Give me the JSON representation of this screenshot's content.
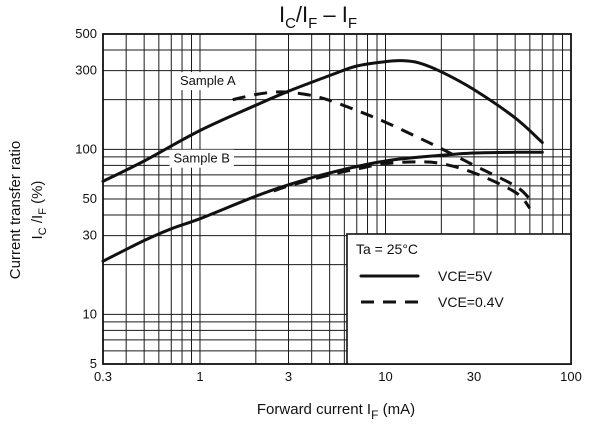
{
  "chart_data": {
    "type": "line",
    "title": "IC/IF – IF",
    "title_parts": {
      "main1": "I",
      "sub1": "C",
      "main2": "/I",
      "sub2": "F",
      "main3": " – I",
      "sub3": "F"
    },
    "xlabel": "Forward current   IF   (mA)",
    "xlabel_parts": {
      "text": "Forward current   I",
      "sub": "F",
      "unit": "   (mA)"
    },
    "ylabel": "Current transfer ratio   IC /IF   (%)",
    "ylabel_parts": {
      "line1": "Current transfer ratio",
      "main": "I",
      "sub1": "C",
      "mid": " /I",
      "sub2": "F",
      "unit": "      (%)"
    },
    "x_scale": "log",
    "y_scale": "log",
    "xlim": [
      0.3,
      100
    ],
    "ylim": [
      5,
      500
    ],
    "x_ticks": [
      0.3,
      1,
      3,
      10,
      30,
      100
    ],
    "x_tick_labels": [
      "0.3",
      "1",
      "3",
      "10",
      "30",
      "100"
    ],
    "y_ticks": [
      5,
      10,
      30,
      50,
      100,
      300,
      500
    ],
    "y_tick_labels": [
      "5",
      "10",
      "30",
      "50",
      "100",
      "300",
      "500"
    ],
    "grid": true,
    "annotations": [
      {
        "text": "Sample   A",
        "x": 0.78,
        "y": 245
      },
      {
        "text": "Sample   B",
        "x": 0.72,
        "y": 83
      }
    ],
    "legend": {
      "position": "bottom-right",
      "header": "Ta = 25°C",
      "entries": [
        {
          "label": "VCE=5V",
          "style": "solid"
        },
        {
          "label": "VCE=0.4V",
          "style": "dashed"
        }
      ]
    },
    "series": [
      {
        "style": "solid",
        "x": [
          0.3,
          0.5,
          1,
          2,
          3,
          5,
          7,
          10,
          12,
          15,
          20,
          30,
          50,
          70
        ],
        "y": [
          64,
          85,
          130,
          185,
          225,
          280,
          320,
          340,
          345,
          335,
          295,
          230,
          155,
          110
        ]
      },
      {
        "style": "dashed",
        "x": [
          1.5,
          2,
          2.5,
          3,
          4,
          5,
          7,
          10,
          15,
          20,
          30,
          50,
          60
        ],
        "y": [
          200,
          215,
          222,
          222,
          212,
          198,
          172,
          146,
          118,
          101,
          80,
          60,
          50
        ]
      },
      {
        "style": "solid",
        "x": [
          0.3,
          0.5,
          0.7,
          1,
          2,
          3,
          5,
          10,
          20,
          30,
          50,
          70
        ],
        "y": [
          21,
          28,
          33,
          38,
          52,
          61,
          72,
          85,
          92,
          95,
          96,
          96
        ]
      },
      {
        "style": "dashed",
        "x": [
          2.5,
          3,
          5,
          7,
          10,
          15,
          20,
          30,
          50,
          60
        ],
        "y": [
          56,
          60,
          70,
          76,
          82,
          84,
          82,
          72,
          55,
          44
        ]
      }
    ]
  }
}
